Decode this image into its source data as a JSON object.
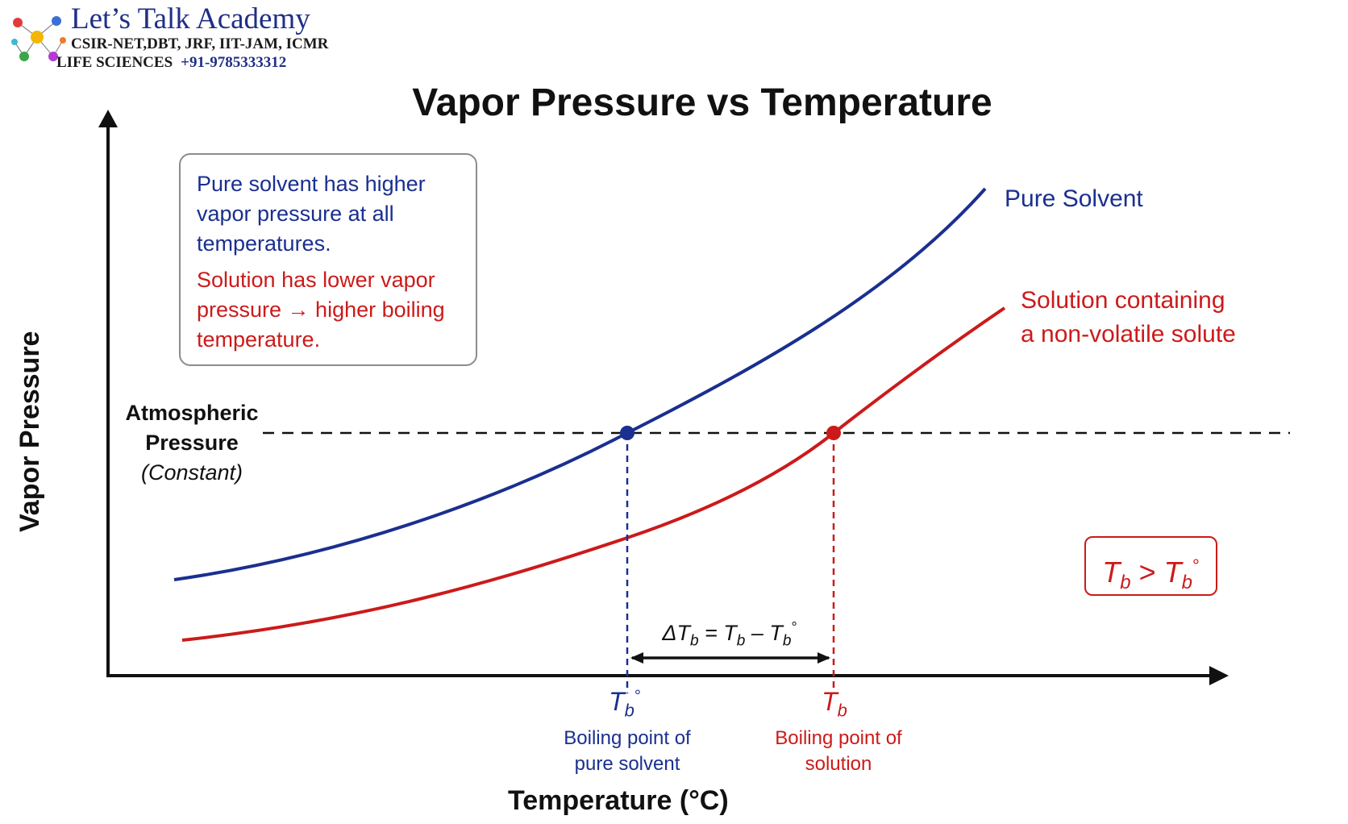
{
  "brand": {
    "name": "Let’s Talk Academy",
    "line1": "CSIR-NET,DBT, JRF, IIT-JAM, ICMR",
    "line2": "LIFE SCIENCES",
    "phone": "+91-9785333312",
    "logo_icon": "molecule-logo-icon"
  },
  "diagram": {
    "title": "Vapor Pressure vs Temperature",
    "y_axis_label": "Vapor Pressure",
    "x_axis_label": "Temperature (°C)",
    "note": {
      "blue_text": "Pure solvent has higher vapor pressure at all temperatures.",
      "red_text": "Solution has lower vapor pressure → higher boiling temperature."
    },
    "series": {
      "pure_solvent": {
        "label": "Pure Solvent",
        "color": "#1a2f8f"
      },
      "solution": {
        "label_line1": "Solution containing",
        "label_line2": "a non-volatile solute",
        "color": "#cc1a1a"
      }
    },
    "atmospheric": {
      "line1": "Atmospheric",
      "line2": "Pressure",
      "line3": "(Constant)"
    },
    "relation": {
      "left": "T",
      "left_sub": "b",
      "op": " > ",
      "right": "T",
      "right_sub": "b",
      "right_sup": "°"
    },
    "delta": {
      "prefix": "ΔT",
      "sub1": "b",
      "eq": " = T",
      "sub2": "b",
      "minus": " – T",
      "sub3": "b",
      "sup3": "°"
    },
    "tick_pure": {
      "main": "T",
      "sub": "b",
      "sup": "°",
      "caption_line1": "Boiling point of",
      "caption_line2": "pure solvent"
    },
    "tick_solution": {
      "main": "T",
      "sub": "b",
      "caption_line1": "Boiling point of",
      "caption_line2": "solution"
    }
  }
}
